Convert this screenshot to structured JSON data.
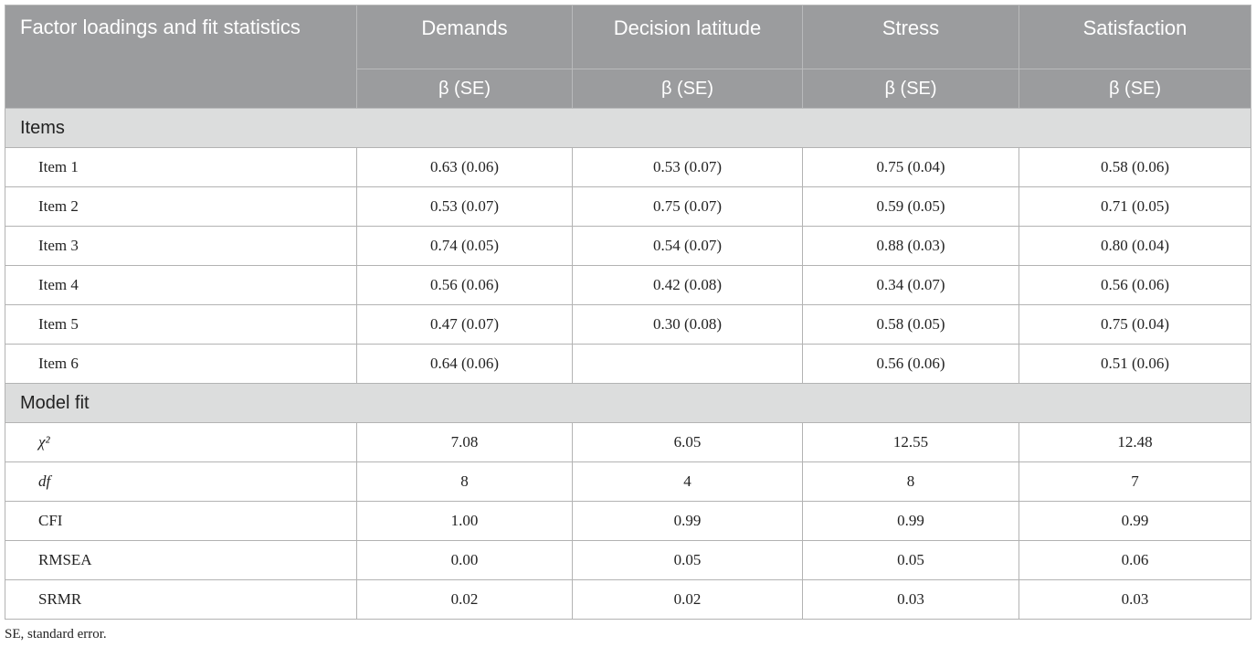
{
  "header": {
    "stub": "Factor loadings and fit statistics",
    "columns": [
      "Demands",
      "Decision latitude",
      "Stress",
      "Satisfaction"
    ],
    "sub": [
      "β (SE)",
      "β (SE)",
      "β (SE)",
      "β (SE)"
    ]
  },
  "sections": [
    {
      "title": "Items",
      "rows": [
        [
          "Item 1",
          "0.63 (0.06)",
          "0.53 (0.07)",
          "0.75 (0.04)",
          "0.58 (0.06)"
        ],
        [
          "Item 2",
          "0.53 (0.07)",
          "0.75 (0.07)",
          "0.59 (0.05)",
          "0.71 (0.05)"
        ],
        [
          "Item 3",
          "0.74 (0.05)",
          "0.54 (0.07)",
          "0.88 (0.03)",
          "0.80 (0.04)"
        ],
        [
          "Item 4",
          "0.56 (0.06)",
          "0.42 (0.08)",
          "0.34 (0.07)",
          "0.56 (0.06)"
        ],
        [
          "Item 5",
          "0.47 (0.07)",
          "0.30 (0.08)",
          "0.58 (0.05)",
          "0.75 (0.04)"
        ],
        [
          "Item 6",
          "0.64 (0.06)",
          null,
          "0.56 (0.06)",
          "0.51 (0.06)"
        ]
      ]
    },
    {
      "title": "Model fit",
      "rows": [
        [
          "χ²",
          "7.08",
          "6.05",
          "12.55",
          "12.48"
        ],
        [
          "df",
          "8",
          "4",
          "8",
          "7"
        ],
        [
          "CFI",
          "1.00",
          "0.99",
          "0.99",
          "0.99"
        ],
        [
          "RMSEA",
          "0.00",
          "0.05",
          "0.05",
          "0.06"
        ],
        [
          "SRMR",
          "0.02",
          "0.02",
          "0.03",
          "0.03"
        ]
      ]
    }
  ],
  "footnote": "SE, standard error."
}
